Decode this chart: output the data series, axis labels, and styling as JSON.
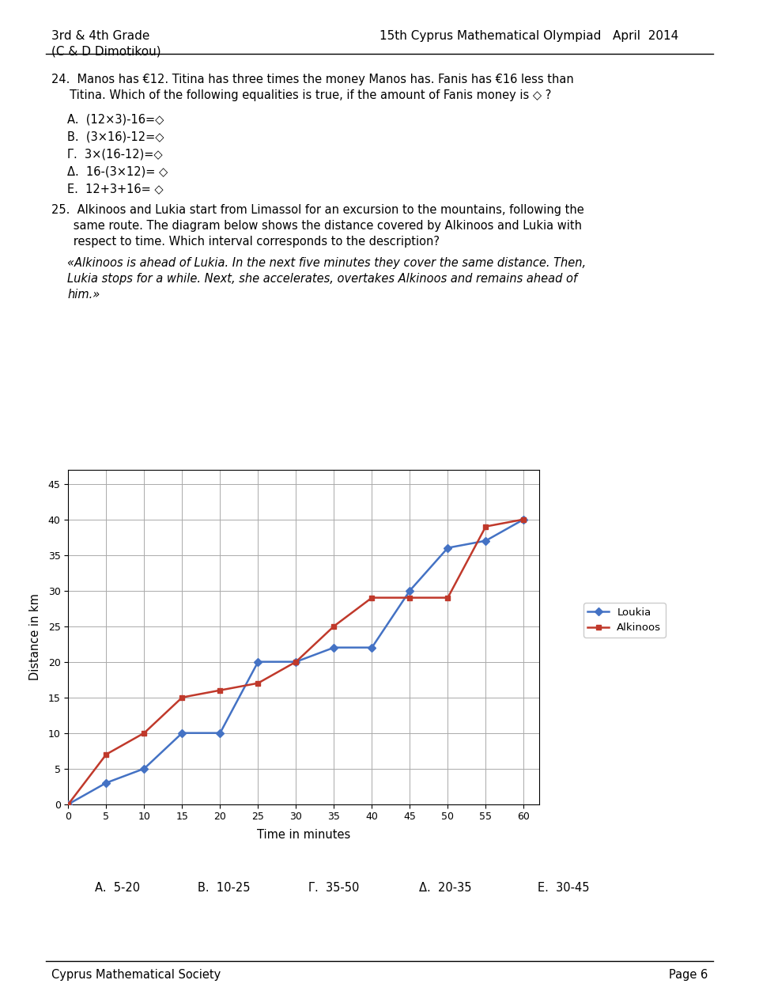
{
  "loukia_x": [
    0,
    5,
    10,
    15,
    20,
    25,
    30,
    35,
    40,
    45,
    50,
    55,
    60
  ],
  "loukia_y": [
    0,
    3,
    5,
    10,
    10,
    20,
    20,
    22,
    22,
    30,
    36,
    37,
    40
  ],
  "alkinoos_x": [
    0,
    5,
    10,
    15,
    20,
    25,
    30,
    35,
    40,
    45,
    50,
    55,
    60
  ],
  "alkinoos_y": [
    0,
    7,
    10,
    15,
    16,
    17,
    20,
    25,
    29,
    29,
    29,
    39,
    40
  ],
  "loukia_color": "#4472C4",
  "alkinoos_color": "#C0392B",
  "xlabel": "Time in minutes",
  "ylabel": "Distance in km",
  "xlim": [
    0,
    62
  ],
  "ylim": [
    0,
    47
  ],
  "xticks": [
    0,
    5,
    10,
    15,
    20,
    25,
    30,
    35,
    40,
    45,
    50,
    55,
    60
  ],
  "yticks": [
    0,
    5,
    10,
    15,
    20,
    25,
    30,
    35,
    40,
    45
  ],
  "grid_color": "#AAAAAA",
  "background_color": "#FFFFFF",
  "page_bg": "#FFFFFF",
  "header_left_line1": "3rd & 4th Grade",
  "header_left_line2": "(C & D Dimotikou)",
  "header_right": "15th Cyprus Mathematical Olympiad   April  2014",
  "q24_text": "24.  Manos has €12. Titina has three times the money Manos has. Fanis has €16 less than",
  "q24_text2": "     Titina. Which of the following equalities is true, if the amount of Fanis money is ◇ ?",
  "q24_a": "A.  (12×3)-16=◇",
  "q24_b": "B.  (3×16)-12=◇",
  "q24_c": "Γ.  3×(16-12)=◇",
  "q24_d": "Δ.  16-(3×12)= ◇",
  "q24_e": "E.  12+3+16= ◇",
  "q25_text1": "25.  Alkinoos and Lukia start from Limassol for an excursion to the mountains, following the",
  "q25_text2": "      same route. The diagram below shows the distance covered by Alkinoos and Lukia with",
  "q25_text3": "      respect to time. Which interval corresponds to the description?",
  "q25_quote1": "«Alkinoos is ahead of Lukia. In the next five minutes they cover the same distance. Then,",
  "q25_quote2": "Lukia stops for a while. Next, she accelerates, overtakes Alkinoos and remains ahead of",
  "q25_quote3": "him.»",
  "answers_text": "A.  5-20          B.  10-25          Γ.  35-50          Δ.  20-35          E.  30-45",
  "footer_left": "Cyprus Mathematical Society",
  "footer_right": "Page 6"
}
